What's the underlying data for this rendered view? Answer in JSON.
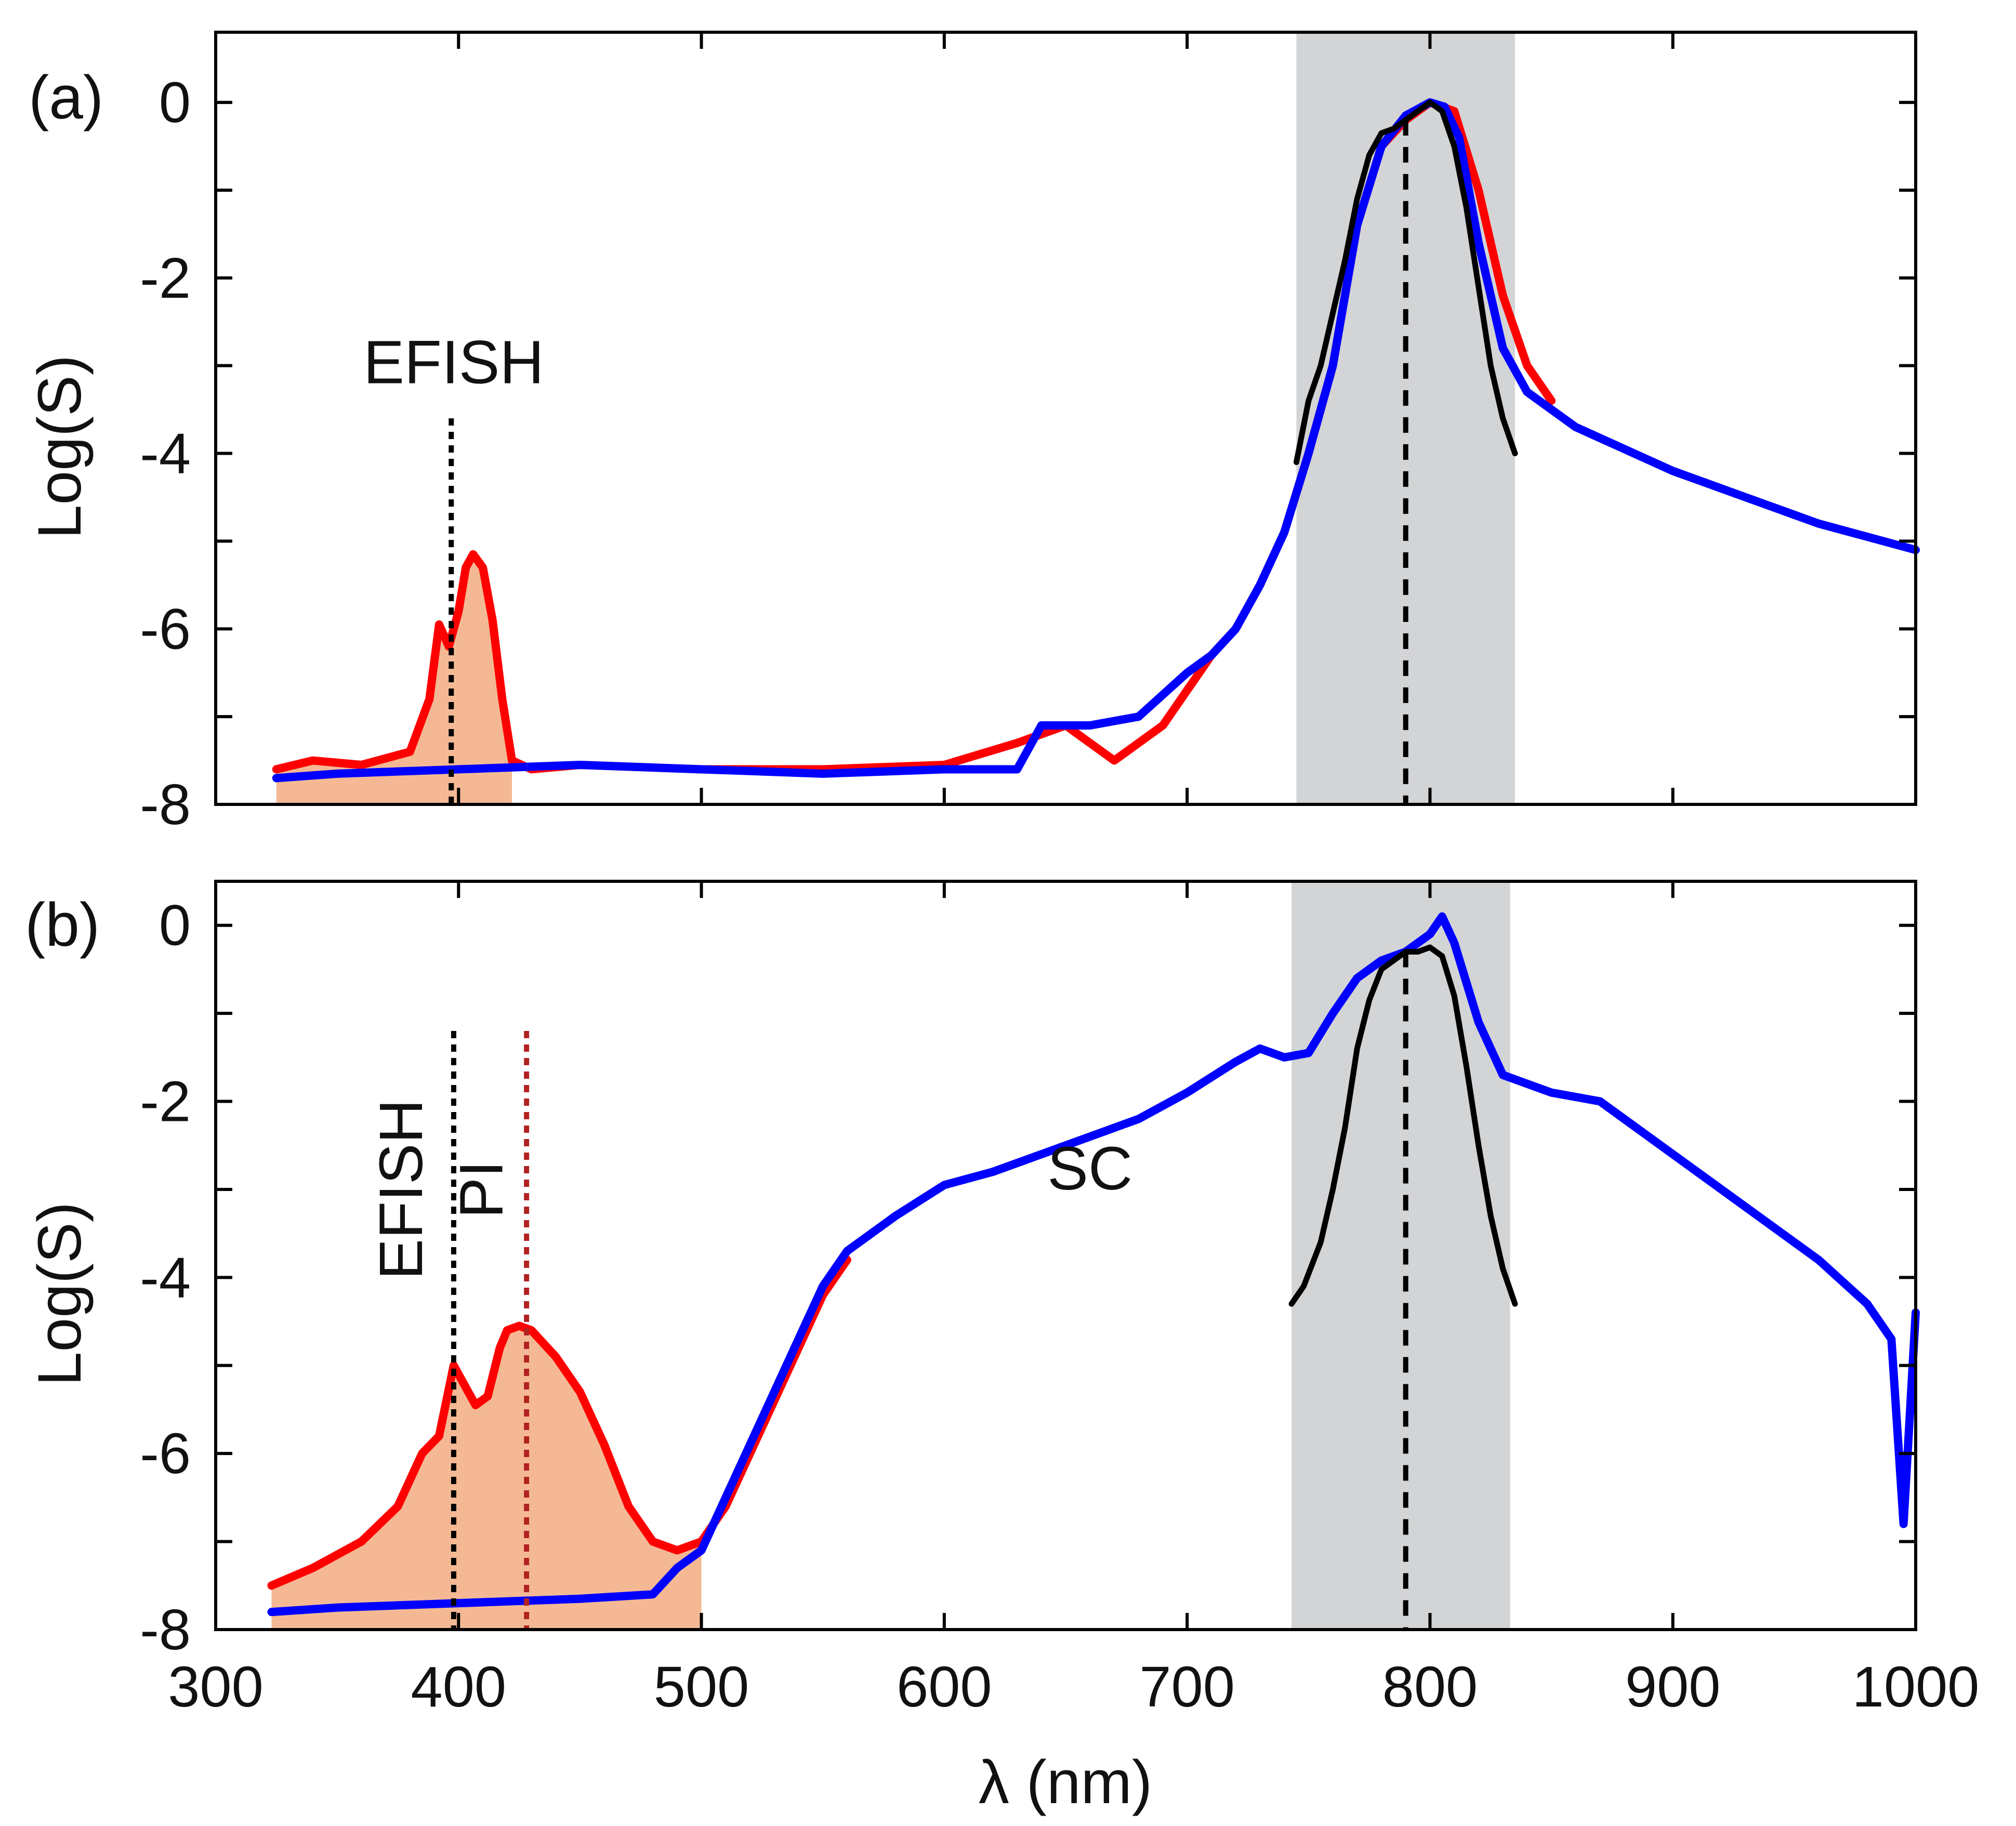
{
  "chart_data": [
    {
      "panel": "(a)",
      "type": "line",
      "xlabel": "",
      "ylabel": "Log(S)",
      "xlim": [
        300,
        1000
      ],
      "ylim": [
        -8,
        0.8
      ],
      "xticks": [
        300,
        400,
        500,
        600,
        700,
        800,
        900,
        1000
      ],
      "xtick_labels_shown": false,
      "yticks": [
        0,
        -2,
        -4,
        -6,
        -8
      ],
      "ytick_labels": [
        "0",
        "-2",
        "-4",
        "-6",
        "-8"
      ],
      "series": [
        {
          "name": "red",
          "color": "#ff0000",
          "fill": "#f4b994",
          "x": [
            325,
            340,
            360,
            380,
            388,
            392,
            396,
            400,
            403,
            406,
            410,
            414,
            418,
            422,
            430,
            450,
            500,
            550,
            600,
            630,
            650,
            670,
            690,
            700,
            710,
            720,
            730,
            740,
            750,
            760,
            770,
            780,
            790,
            800,
            810,
            820,
            830,
            840,
            850
          ],
          "y": [
            -7.6,
            -7.5,
            -7.55,
            -7.4,
            -6.8,
            -5.95,
            -6.2,
            -5.8,
            -5.3,
            -5.15,
            -5.3,
            -5.9,
            -6.8,
            -7.5,
            -7.6,
            -7.55,
            -7.6,
            -7.6,
            -7.55,
            -7.3,
            -7.1,
            -7.5,
            -7.1,
            -6.7,
            -6.3,
            -6.0,
            -5.5,
            -4.9,
            -4.0,
            -3.0,
            -1.4,
            -0.5,
            -0.2,
            0.0,
            -0.1,
            -1.0,
            -2.2,
            -3.0,
            -3.4
          ]
        },
        {
          "name": "blue",
          "color": "#0000ff",
          "x": [
            325,
            350,
            400,
            450,
            500,
            550,
            600,
            630,
            640,
            660,
            680,
            700,
            710,
            720,
            730,
            740,
            750,
            760,
            770,
            780,
            790,
            800,
            806,
            812,
            820,
            830,
            840,
            860,
            880,
            900,
            920,
            940,
            960,
            980,
            1000
          ],
          "y": [
            -7.7,
            -7.65,
            -7.6,
            -7.55,
            -7.6,
            -7.65,
            -7.6,
            -7.6,
            -7.1,
            -7.1,
            -7.0,
            -6.5,
            -6.3,
            -6.0,
            -5.5,
            -4.9,
            -4.0,
            -3.0,
            -1.4,
            -0.5,
            -0.15,
            0.0,
            -0.05,
            -0.4,
            -1.6,
            -2.8,
            -3.3,
            -3.7,
            -3.95,
            -4.2,
            -4.4,
            -4.6,
            -4.8,
            -4.95,
            -5.1
          ]
        },
        {
          "name": "black",
          "color": "#000000",
          "x": [
            745,
            750,
            755,
            760,
            765,
            770,
            775,
            780,
            785,
            790,
            795,
            800,
            805,
            810,
            815,
            820,
            825,
            830,
            835
          ],
          "y": [
            -4.1,
            -3.4,
            -3.0,
            -2.4,
            -1.8,
            -1.1,
            -0.6,
            -0.35,
            -0.3,
            -0.2,
            -0.1,
            0.0,
            -0.1,
            -0.5,
            -1.2,
            -2.1,
            -3.0,
            -3.6,
            -4.0
          ]
        }
      ],
      "shaded_band": {
        "x_range": [
          745,
          835
        ],
        "color": "#d3d4d6"
      },
      "vlines": [
        {
          "x": 397,
          "y_top": -3.6,
          "style": "dotted",
          "color": "#000000"
        },
        {
          "x": 790,
          "y_top": -0.2,
          "style": "dashed",
          "color": "#000000"
        }
      ],
      "annotations": [
        {
          "text": "EFISH",
          "x": 398,
          "y": -3.2,
          "rotation": 0
        }
      ]
    },
    {
      "panel": "(b)",
      "type": "line",
      "xlabel": "λ (nm)",
      "ylabel": "Log(S)",
      "xlim": [
        300,
        1000
      ],
      "ylim": [
        -8,
        0.5
      ],
      "xticks": [
        300,
        400,
        500,
        600,
        700,
        800,
        900,
        1000
      ],
      "xtick_labels": [
        "300",
        "400",
        "500",
        "600",
        "700",
        "800",
        "900",
        "1000"
      ],
      "yticks": [
        0,
        -2,
        -4,
        -6,
        -8
      ],
      "ytick_labels": [
        "0",
        "-2",
        "-4",
        "-6",
        "-8"
      ],
      "series": [
        {
          "name": "red",
          "color": "#ff0000",
          "fill": "#f4b994",
          "x": [
            323,
            340,
            360,
            375,
            385,
            392,
            398,
            402,
            407,
            412,
            417,
            420,
            425,
            430,
            440,
            450,
            460,
            470,
            480,
            490,
            500,
            510,
            520,
            530,
            540,
            550,
            560
          ],
          "y": [
            -7.5,
            -7.3,
            -7.0,
            -6.6,
            -6.0,
            -5.8,
            -5.0,
            -5.2,
            -5.45,
            -5.35,
            -4.8,
            -4.6,
            -4.55,
            -4.6,
            -4.9,
            -5.3,
            -5.9,
            -6.6,
            -7.0,
            -7.1,
            -7.0,
            -6.6,
            -6.0,
            -5.4,
            -4.8,
            -4.2,
            -3.8
          ]
        },
        {
          "name": "blue",
          "color": "#0000ff",
          "x": [
            323,
            350,
            400,
            450,
            480,
            490,
            500,
            510,
            520,
            530,
            540,
            550,
            560,
            580,
            600,
            620,
            650,
            680,
            700,
            720,
            730,
            740,
            750,
            760,
            770,
            780,
            790,
            800,
            805,
            810,
            820,
            830,
            850,
            870,
            880,
            900,
            920,
            940,
            960,
            980,
            990,
            995,
            1000
          ],
          "y": [
            -7.8,
            -7.75,
            -7.7,
            -7.65,
            -7.6,
            -7.3,
            -7.1,
            -6.5,
            -5.9,
            -5.3,
            -4.7,
            -4.1,
            -3.7,
            -3.3,
            -2.95,
            -2.8,
            -2.5,
            -2.2,
            -1.9,
            -1.55,
            -1.4,
            -1.5,
            -1.45,
            -1.0,
            -0.6,
            -0.4,
            -0.3,
            -0.1,
            0.1,
            -0.2,
            -1.1,
            -1.7,
            -1.9,
            -2.0,
            -2.2,
            -2.6,
            -3.0,
            -3.4,
            -3.8,
            -4.3,
            -4.7,
            -6.8,
            -4.4
          ]
        },
        {
          "name": "black",
          "color": "#000000",
          "x": [
            743,
            748,
            755,
            760,
            765,
            770,
            775,
            780,
            785,
            790,
            795,
            800,
            805,
            810,
            815,
            820,
            825,
            830,
            835
          ],
          "y": [
            -4.3,
            -4.1,
            -3.6,
            -3.0,
            -2.3,
            -1.4,
            -0.85,
            -0.5,
            -0.4,
            -0.3,
            -0.3,
            -0.25,
            -0.35,
            -0.8,
            -1.6,
            -2.5,
            -3.3,
            -3.9,
            -4.3
          ]
        }
      ],
      "shaded_band": {
        "x_range": [
          743,
          833
        ],
        "color": "#d3d4d6"
      },
      "vlines": [
        {
          "x": 398,
          "y_top": -1.2,
          "style": "dotted",
          "color": "#000000"
        },
        {
          "x": 428,
          "y_top": -1.2,
          "style": "dotted",
          "color": "#b22222"
        },
        {
          "x": 790,
          "y_top": -0.3,
          "style": "dashed",
          "color": "#000000"
        }
      ],
      "annotations": [
        {
          "text": "EFISH",
          "x": 385,
          "y": -3.0,
          "rotation": -90
        },
        {
          "text": "PI",
          "x": 418,
          "y": -3.0,
          "rotation": -90
        },
        {
          "text": "SC",
          "x": 660,
          "y": -3.0,
          "rotation": 0
        }
      ]
    }
  ]
}
